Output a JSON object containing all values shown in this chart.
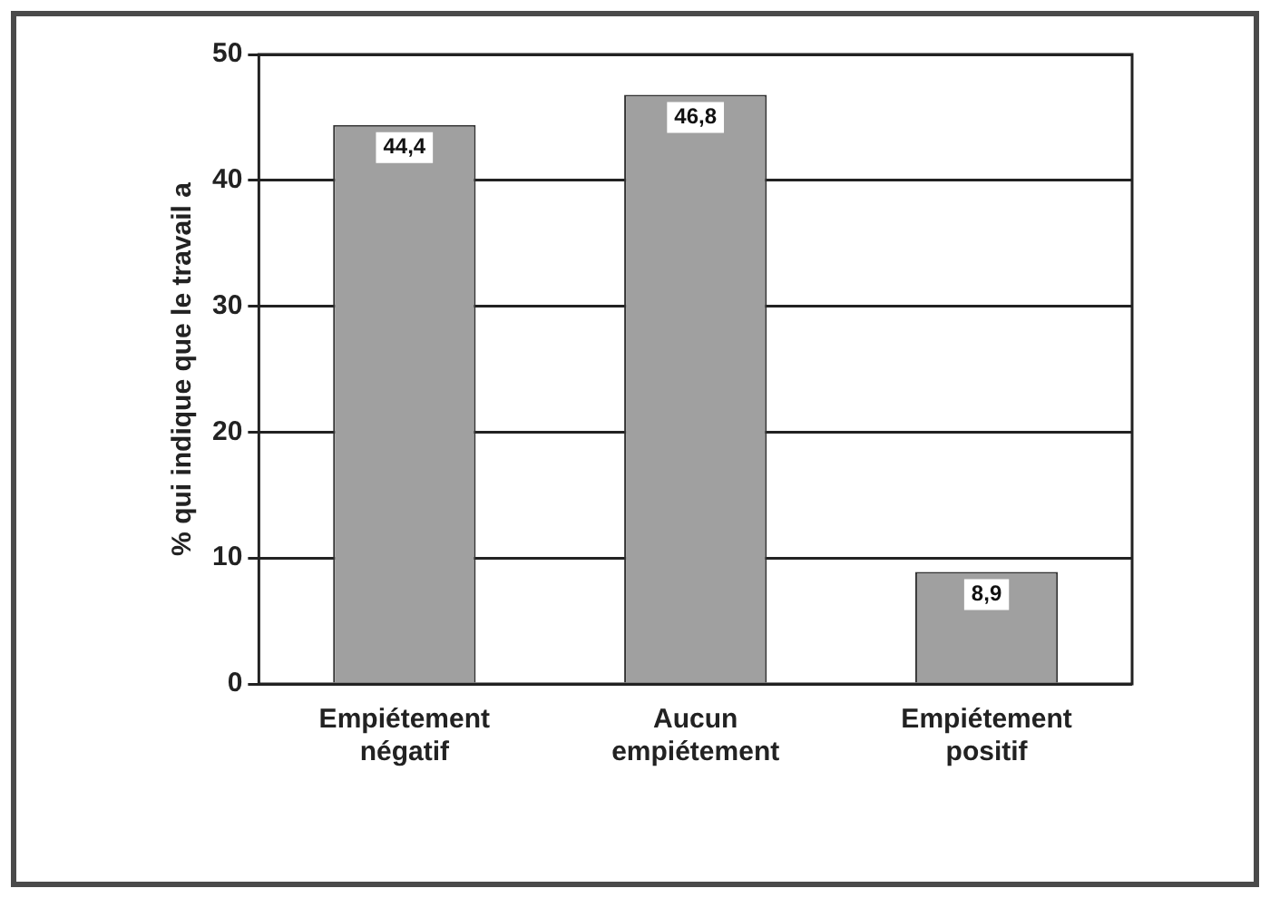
{
  "chart_data": {
    "type": "bar",
    "ylabel": "% qui indique que le travail a",
    "categories": [
      "Empiétement négatif",
      "Aucun empiétement",
      "Empiétement positif"
    ],
    "values": [
      44.4,
      46.8,
      8.9
    ],
    "color": "#a0a0a0",
    "value_labels": [
      "44,4",
      "46,8",
      "8,9"
    ],
    "ylim": [
      0,
      50
    ],
    "yticks": [
      0,
      10,
      20,
      30,
      40,
      50
    ],
    "grid": "y",
    "legend": false
  }
}
